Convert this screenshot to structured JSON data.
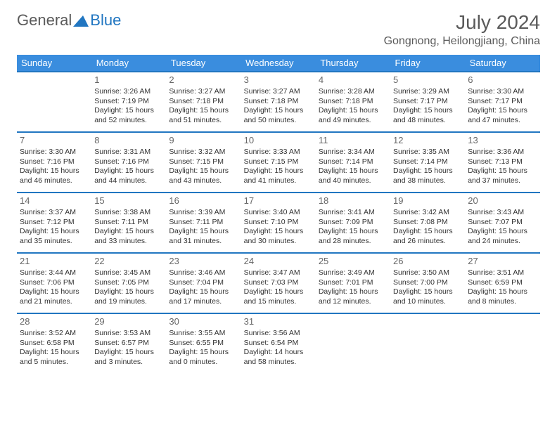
{
  "logo": {
    "text1": "General",
    "text2": "Blue"
  },
  "title": "July 2024",
  "location": "Gongnong, Heilongjiang, China",
  "weekdays": [
    "Sunday",
    "Monday",
    "Tuesday",
    "Wednesday",
    "Thursday",
    "Friday",
    "Saturday"
  ],
  "colors": {
    "header_bg": "#3a8dde",
    "header_fg": "#ffffff",
    "rule": "#2176c1",
    "text": "#333333",
    "muted": "#5a5a5a"
  },
  "label_prefix": {
    "sunrise": "Sunrise: ",
    "sunset": "Sunset: ",
    "daylight": "Daylight: "
  },
  "weeks": [
    [
      null,
      {
        "n": "1",
        "sunrise": "3:26 AM",
        "sunset": "7:19 PM",
        "daylight": "15 hours and 52 minutes."
      },
      {
        "n": "2",
        "sunrise": "3:27 AM",
        "sunset": "7:18 PM",
        "daylight": "15 hours and 51 minutes."
      },
      {
        "n": "3",
        "sunrise": "3:27 AM",
        "sunset": "7:18 PM",
        "daylight": "15 hours and 50 minutes."
      },
      {
        "n": "4",
        "sunrise": "3:28 AM",
        "sunset": "7:18 PM",
        "daylight": "15 hours and 49 minutes."
      },
      {
        "n": "5",
        "sunrise": "3:29 AM",
        "sunset": "7:17 PM",
        "daylight": "15 hours and 48 minutes."
      },
      {
        "n": "6",
        "sunrise": "3:30 AM",
        "sunset": "7:17 PM",
        "daylight": "15 hours and 47 minutes."
      }
    ],
    [
      {
        "n": "7",
        "sunrise": "3:30 AM",
        "sunset": "7:16 PM",
        "daylight": "15 hours and 46 minutes."
      },
      {
        "n": "8",
        "sunrise": "3:31 AM",
        "sunset": "7:16 PM",
        "daylight": "15 hours and 44 minutes."
      },
      {
        "n": "9",
        "sunrise": "3:32 AM",
        "sunset": "7:15 PM",
        "daylight": "15 hours and 43 minutes."
      },
      {
        "n": "10",
        "sunrise": "3:33 AM",
        "sunset": "7:15 PM",
        "daylight": "15 hours and 41 minutes."
      },
      {
        "n": "11",
        "sunrise": "3:34 AM",
        "sunset": "7:14 PM",
        "daylight": "15 hours and 40 minutes."
      },
      {
        "n": "12",
        "sunrise": "3:35 AM",
        "sunset": "7:14 PM",
        "daylight": "15 hours and 38 minutes."
      },
      {
        "n": "13",
        "sunrise": "3:36 AM",
        "sunset": "7:13 PM",
        "daylight": "15 hours and 37 minutes."
      }
    ],
    [
      {
        "n": "14",
        "sunrise": "3:37 AM",
        "sunset": "7:12 PM",
        "daylight": "15 hours and 35 minutes."
      },
      {
        "n": "15",
        "sunrise": "3:38 AM",
        "sunset": "7:11 PM",
        "daylight": "15 hours and 33 minutes."
      },
      {
        "n": "16",
        "sunrise": "3:39 AM",
        "sunset": "7:11 PM",
        "daylight": "15 hours and 31 minutes."
      },
      {
        "n": "17",
        "sunrise": "3:40 AM",
        "sunset": "7:10 PM",
        "daylight": "15 hours and 30 minutes."
      },
      {
        "n": "18",
        "sunrise": "3:41 AM",
        "sunset": "7:09 PM",
        "daylight": "15 hours and 28 minutes."
      },
      {
        "n": "19",
        "sunrise": "3:42 AM",
        "sunset": "7:08 PM",
        "daylight": "15 hours and 26 minutes."
      },
      {
        "n": "20",
        "sunrise": "3:43 AM",
        "sunset": "7:07 PM",
        "daylight": "15 hours and 24 minutes."
      }
    ],
    [
      {
        "n": "21",
        "sunrise": "3:44 AM",
        "sunset": "7:06 PM",
        "daylight": "15 hours and 21 minutes."
      },
      {
        "n": "22",
        "sunrise": "3:45 AM",
        "sunset": "7:05 PM",
        "daylight": "15 hours and 19 minutes."
      },
      {
        "n": "23",
        "sunrise": "3:46 AM",
        "sunset": "7:04 PM",
        "daylight": "15 hours and 17 minutes."
      },
      {
        "n": "24",
        "sunrise": "3:47 AM",
        "sunset": "7:03 PM",
        "daylight": "15 hours and 15 minutes."
      },
      {
        "n": "25",
        "sunrise": "3:49 AM",
        "sunset": "7:01 PM",
        "daylight": "15 hours and 12 minutes."
      },
      {
        "n": "26",
        "sunrise": "3:50 AM",
        "sunset": "7:00 PM",
        "daylight": "15 hours and 10 minutes."
      },
      {
        "n": "27",
        "sunrise": "3:51 AM",
        "sunset": "6:59 PM",
        "daylight": "15 hours and 8 minutes."
      }
    ],
    [
      {
        "n": "28",
        "sunrise": "3:52 AM",
        "sunset": "6:58 PM",
        "daylight": "15 hours and 5 minutes."
      },
      {
        "n": "29",
        "sunrise": "3:53 AM",
        "sunset": "6:57 PM",
        "daylight": "15 hours and 3 minutes."
      },
      {
        "n": "30",
        "sunrise": "3:55 AM",
        "sunset": "6:55 PM",
        "daylight": "15 hours and 0 minutes."
      },
      {
        "n": "31",
        "sunrise": "3:56 AM",
        "sunset": "6:54 PM",
        "daylight": "14 hours and 58 minutes."
      },
      null,
      null,
      null
    ]
  ]
}
